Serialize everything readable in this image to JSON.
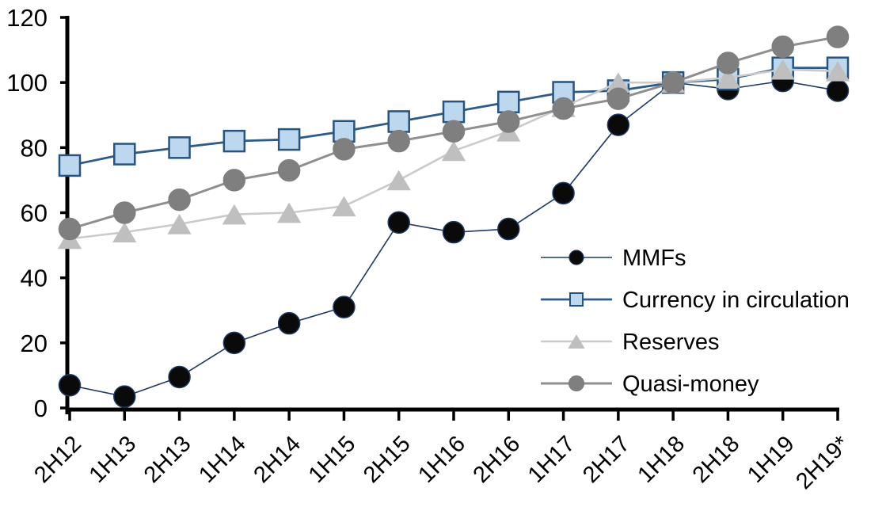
{
  "chart_data": {
    "type": "line",
    "title": "",
    "xlabel": "",
    "ylabel": "",
    "ylim": [
      0,
      120
    ],
    "yticks": [
      0,
      20,
      40,
      60,
      80,
      100,
      120
    ],
    "grid": "off",
    "legend_position": "inside-right",
    "index_note": "series indexed, all equal 100 at 1H18",
    "categories": [
      "2H12",
      "1H13",
      "2H13",
      "1H14",
      "2H14",
      "1H15",
      "2H15",
      "1H16",
      "2H16",
      "1H17",
      "2H17",
      "1H18",
      "2H18",
      "1H19",
      "2H19*"
    ],
    "series": [
      {
        "name": "MMFs",
        "marker": "circle",
        "marker_fill": "#0a0a0a",
        "marker_stroke": "#1F3864",
        "line_color": "#1F3864",
        "values": [
          7,
          3.5,
          9.5,
          20,
          26,
          31,
          57,
          54,
          55,
          66,
          87,
          100,
          98,
          100.5,
          97.5
        ]
      },
      {
        "name": "Currency in circulation",
        "marker": "square",
        "marker_fill": "#BDD7EE",
        "marker_stroke": "#27547F",
        "line_color": "#2E5C8A",
        "values": [
          74.5,
          78,
          80,
          82,
          82.5,
          85,
          88,
          91,
          94,
          97,
          97.5,
          100,
          101,
          104.5,
          104.5
        ]
      },
      {
        "name": "Reserves",
        "marker": "triangle",
        "marker_fill": "#BFBFBF",
        "marker_stroke": "#BFBFBF",
        "line_color": "#CBCBCB",
        "values": [
          52,
          54,
          56.5,
          59.5,
          60,
          62,
          70,
          79,
          85,
          92.5,
          100,
          100,
          101.5,
          104,
          103.5
        ]
      },
      {
        "name": "Quasi-money",
        "marker": "circle",
        "marker_fill": "#7F7F7F",
        "marker_stroke": "#7F7F7F",
        "line_color": "#8F8F8F",
        "values": [
          55,
          60,
          64,
          70,
          73,
          79.5,
          82,
          85,
          88,
          92,
          95,
          100,
          106,
          111,
          114
        ]
      }
    ],
    "axis_color": "#000000"
  }
}
